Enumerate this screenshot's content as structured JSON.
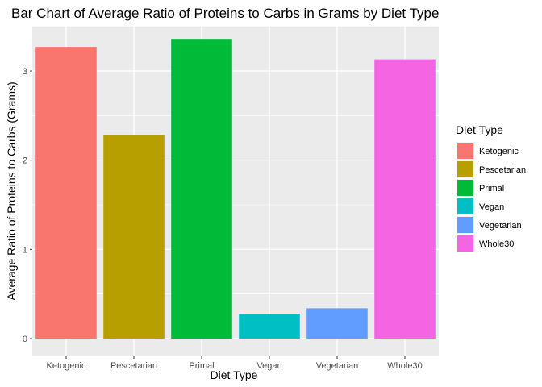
{
  "chart_data": {
    "type": "bar",
    "title": "Bar Chart of Average Ratio of Proteins to Carbs in Grams by Diet Type",
    "xlabel": "Diet Type",
    "ylabel": "Average Ratio of Proteins to Carbs (Grams)",
    "categories": [
      "Ketogenic",
      "Pescetarian",
      "Primal",
      "Vegan",
      "Vegetarian",
      "Whole30"
    ],
    "values": [
      3.27,
      2.28,
      3.36,
      0.28,
      0.34,
      3.13
    ],
    "colors": [
      "#F8766D",
      "#B79F00",
      "#00BA38",
      "#00BFC4",
      "#619CFF",
      "#F564E3"
    ],
    "ylim": [
      0,
      3.5
    ],
    "yticks": [
      0,
      1,
      2,
      3
    ],
    "ytick_labels": [
      "0",
      "1",
      "2",
      "3"
    ],
    "grid": true,
    "panel_background": "#EBEBEB",
    "grid_color": "#FFFFFF",
    "legend": {
      "title": "Diet Type",
      "position": "right",
      "entries": [
        "Ketogenic",
        "Pescetarian",
        "Primal",
        "Vegan",
        "Vegetarian",
        "Whole30"
      ]
    }
  }
}
